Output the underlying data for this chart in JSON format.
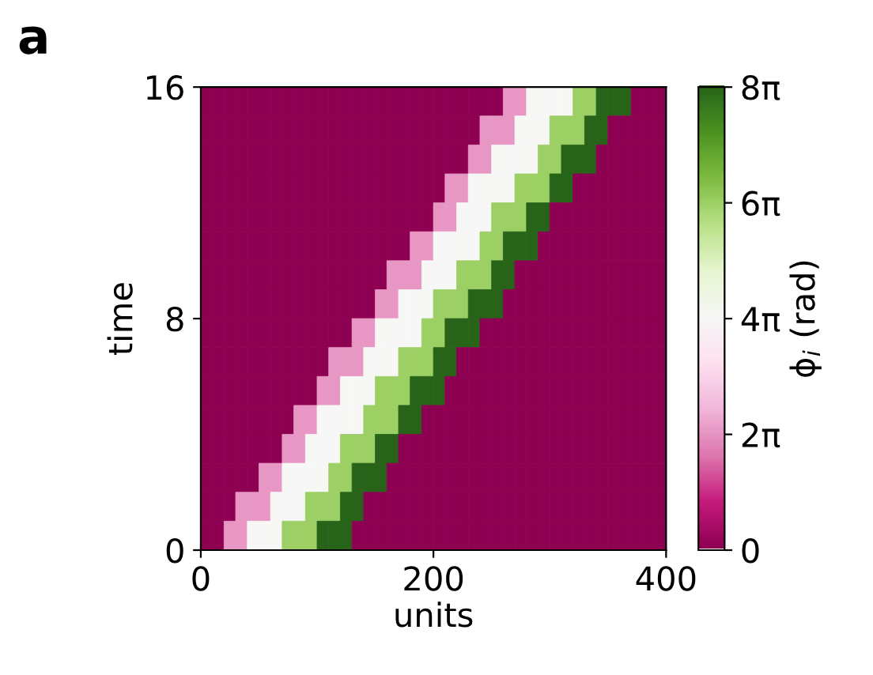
{
  "chart_data": {
    "type": "heatmap",
    "title": "a",
    "xlabel": "units",
    "ylabel": "time",
    "clabel": "ϕ$_{i}$ (rad)",
    "xlim": [
      0,
      400
    ],
    "xticks": [
      0,
      200,
      400
    ],
    "ylim": [
      0,
      16
    ],
    "yticks": [
      0,
      8,
      16
    ],
    "clim": [
      0,
      25.133
    ],
    "cticks": [
      0,
      {
        "value": 6.283,
        "label": "2π"
      },
      {
        "value": 12.566,
        "label": "4π"
      },
      {
        "value": 18.85,
        "label": "6π"
      },
      {
        "value": 25.133,
        "label": "8π"
      }
    ],
    "cells": [
      [
        0,
        0,
        0,
        0,
        0,
        0,
        0,
        0,
        0,
        0,
        0,
        0,
        0,
        0,
        0,
        0,
        0,
        0,
        0,
        0,
        0,
        0,
        0,
        0,
        0,
        0,
        6.3,
        6.3,
        12.6,
        12.6,
        12.6,
        12.6,
        18.8,
        18.8,
        25.1,
        25.1,
        25.1,
        0,
        0,
        0
      ],
      [
        0,
        0,
        0,
        0,
        0,
        0,
        0,
        0,
        0,
        0,
        0,
        0,
        0,
        0,
        0,
        0,
        0,
        0,
        0,
        0,
        0,
        0,
        0,
        0,
        6.3,
        6.3,
        6.3,
        12.6,
        12.6,
        12.6,
        18.8,
        18.8,
        18.8,
        25.1,
        25.1,
        0,
        0,
        0,
        0,
        0
      ],
      [
        0,
        0,
        0,
        0,
        0,
        0,
        0,
        0,
        0,
        0,
        0,
        0,
        0,
        0,
        0,
        0,
        0,
        0,
        0,
        0,
        0,
        0,
        0,
        6.3,
        6.3,
        12.6,
        12.6,
        12.6,
        12.6,
        18.8,
        18.8,
        25.1,
        25.1,
        25.1,
        0,
        0,
        0,
        0,
        0,
        0
      ],
      [
        0,
        0,
        0,
        0,
        0,
        0,
        0,
        0,
        0,
        0,
        0,
        0,
        0,
        0,
        0,
        0,
        0,
        0,
        0,
        0,
        0,
        6.3,
        6.3,
        12.6,
        12.6,
        12.6,
        12.6,
        18.8,
        18.8,
        18.8,
        25.1,
        25.1,
        0,
        0,
        0,
        0,
        0,
        0,
        0,
        0
      ],
      [
        0,
        0,
        0,
        0,
        0,
        0,
        0,
        0,
        0,
        0,
        0,
        0,
        0,
        0,
        0,
        0,
        0,
        0,
        0,
        0,
        6.3,
        6.3,
        12.6,
        12.6,
        12.6,
        18.8,
        18.8,
        18.8,
        25.1,
        25.1,
        0,
        0,
        0,
        0,
        0,
        0,
        0,
        0,
        0,
        0
      ],
      [
        0,
        0,
        0,
        0,
        0,
        0,
        0,
        0,
        0,
        0,
        0,
        0,
        0,
        0,
        0,
        0,
        0,
        0,
        6.3,
        6.3,
        12.6,
        12.6,
        12.6,
        12.6,
        18.8,
        18.8,
        25.1,
        25.1,
        25.1,
        0,
        0,
        0,
        0,
        0,
        0,
        0,
        0,
        0,
        0,
        0
      ],
      [
        0,
        0,
        0,
        0,
        0,
        0,
        0,
        0,
        0,
        0,
        0,
        0,
        0,
        0,
        0,
        0,
        6.3,
        6.3,
        6.3,
        12.6,
        12.6,
        12.6,
        18.8,
        18.8,
        18.8,
        25.1,
        25.1,
        0,
        0,
        0,
        0,
        0,
        0,
        0,
        0,
        0,
        0,
        0,
        0,
        0
      ],
      [
        0,
        0,
        0,
        0,
        0,
        0,
        0,
        0,
        0,
        0,
        0,
        0,
        0,
        0,
        0,
        6.3,
        6.3,
        12.6,
        12.6,
        12.6,
        18.8,
        18.8,
        18.8,
        25.1,
        25.1,
        25.1,
        0,
        0,
        0,
        0,
        0,
        0,
        0,
        0,
        0,
        0,
        0,
        0,
        0,
        0
      ],
      [
        0,
        0,
        0,
        0,
        0,
        0,
        0,
        0,
        0,
        0,
        0,
        0,
        0,
        6.3,
        6.3,
        12.6,
        12.6,
        12.6,
        12.6,
        18.8,
        18.8,
        25.1,
        25.1,
        25.1,
        0,
        0,
        0,
        0,
        0,
        0,
        0,
        0,
        0,
        0,
        0,
        0,
        0,
        0,
        0,
        0
      ],
      [
        0,
        0,
        0,
        0,
        0,
        0,
        0,
        0,
        0,
        0,
        0,
        6.3,
        6.3,
        6.3,
        12.6,
        12.6,
        12.6,
        18.8,
        18.8,
        18.8,
        25.1,
        25.1,
        0,
        0,
        0,
        0,
        0,
        0,
        0,
        0,
        0,
        0,
        0,
        0,
        0,
        0,
        0,
        0,
        0,
        0
      ],
      [
        0,
        0,
        0,
        0,
        0,
        0,
        0,
        0,
        0,
        0,
        6.3,
        6.3,
        12.6,
        12.6,
        12.6,
        18.8,
        18.8,
        18.8,
        25.1,
        25.1,
        25.1,
        0,
        0,
        0,
        0,
        0,
        0,
        0,
        0,
        0,
        0,
        0,
        0,
        0,
        0,
        0,
        0,
        0,
        0,
        0
      ],
      [
        0,
        0,
        0,
        0,
        0,
        0,
        0,
        0,
        6.3,
        6.3,
        12.6,
        12.6,
        12.6,
        12.6,
        18.8,
        18.8,
        18.8,
        25.1,
        25.1,
        0,
        0,
        0,
        0,
        0,
        0,
        0,
        0,
        0,
        0,
        0,
        0,
        0,
        0,
        0,
        0,
        0,
        0,
        0,
        0,
        0
      ],
      [
        0,
        0,
        0,
        0,
        0,
        0,
        0,
        6.3,
        6.3,
        12.6,
        12.6,
        12.6,
        18.8,
        18.8,
        18.8,
        25.1,
        25.1,
        0,
        0,
        0,
        0,
        0,
        0,
        0,
        0,
        0,
        0,
        0,
        0,
        0,
        0,
        0,
        0,
        0,
        0,
        0,
        0,
        0,
        0,
        0
      ],
      [
        0,
        0,
        0,
        0,
        0,
        6.3,
        6.3,
        12.6,
        12.6,
        12.6,
        12.6,
        18.8,
        18.8,
        25.1,
        25.1,
        25.1,
        0,
        0,
        0,
        0,
        0,
        0,
        0,
        0,
        0,
        0,
        0,
        0,
        0,
        0,
        0,
        0,
        0,
        0,
        0,
        0,
        0,
        0,
        0,
        0
      ],
      [
        0,
        0,
        0,
        6.3,
        6.3,
        6.3,
        12.6,
        12.6,
        12.6,
        18.8,
        18.8,
        18.8,
        25.1,
        25.1,
        0,
        0,
        0,
        0,
        0,
        0,
        0,
        0,
        0,
        0,
        0,
        0,
        0,
        0,
        0,
        0,
        0,
        0,
        0,
        0,
        0,
        0,
        0,
        0,
        0,
        0
      ],
      [
        0,
        0,
        6.3,
        6.3,
        12.6,
        12.6,
        12.6,
        18.8,
        18.8,
        18.8,
        25.1,
        25.1,
        25.1,
        0,
        0,
        0,
        0,
        0,
        0,
        0,
        0,
        0,
        0,
        0,
        0,
        0,
        0,
        0,
        0,
        0,
        0,
        0,
        0,
        0,
        0,
        0,
        0,
        0,
        0,
        0
      ]
    ]
  }
}
